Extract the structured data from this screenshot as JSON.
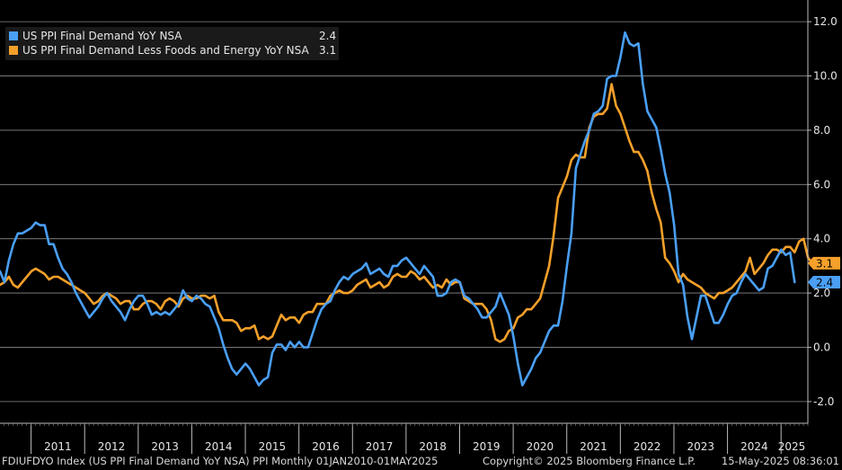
{
  "chart_data": {
    "type": "line",
    "title": "",
    "xlabel": "",
    "ylabel": "",
    "x_start": 2010.42,
    "x_step_months": 1,
    "xlim": [
      2010.42,
      2025.5
    ],
    "ylim": [
      -2.8,
      12.8
    ],
    "yticks": [
      -2.0,
      0.0,
      2.0,
      4.0,
      6.0,
      8.0,
      10.0,
      12.0
    ],
    "ytick_labels": [
      "-2.0",
      "0.0",
      "2.0",
      "4.0",
      "6.0",
      "8.0",
      "10.0",
      "12.0"
    ],
    "xtick_labels": [
      "2011",
      "2012",
      "2013",
      "2014",
      "2015",
      "2016",
      "2017",
      "2018",
      "2019",
      "2020",
      "2021",
      "2022",
      "2023",
      "2024",
      "2025"
    ],
    "legend_position": "top-left",
    "series": [
      {
        "name": "US PPI Final Demand YoY NSA",
        "legend_label": "US PPI Final Demand YoY NSA",
        "last_value": "2.4",
        "color": "#4a9ff5",
        "values": [
          2.8,
          2.4,
          3.2,
          3.8,
          4.2,
          4.2,
          4.3,
          4.4,
          4.6,
          4.5,
          4.5,
          3.8,
          3.8,
          3.3,
          2.9,
          2.7,
          2.4,
          2.0,
          1.7,
          1.4,
          1.1,
          1.3,
          1.5,
          1.8,
          2.0,
          1.7,
          1.5,
          1.3,
          1.0,
          1.4,
          1.7,
          1.9,
          1.9,
          1.6,
          1.2,
          1.3,
          1.2,
          1.3,
          1.2,
          1.4,
          1.6,
          2.1,
          1.8,
          1.7,
          1.9,
          1.8,
          1.6,
          1.5,
          1.1,
          0.7,
          0.1,
          -0.4,
          -0.8,
          -1.0,
          -0.8,
          -0.6,
          -0.8,
          -1.1,
          -1.4,
          -1.2,
          -1.1,
          -0.2,
          0.1,
          0.1,
          -0.1,
          0.2,
          0.0,
          0.2,
          0.0,
          0.0,
          0.5,
          1.0,
          1.4,
          1.6,
          1.7,
          2.1,
          2.4,
          2.6,
          2.5,
          2.7,
          2.8,
          2.9,
          3.1,
          2.7,
          2.8,
          2.9,
          2.7,
          2.6,
          3.0,
          3.0,
          3.2,
          3.3,
          3.1,
          2.9,
          2.7,
          3.0,
          2.8,
          2.6,
          1.9,
          1.9,
          2.0,
          2.4,
          2.5,
          2.4,
          1.9,
          1.8,
          1.6,
          1.4,
          1.1,
          1.1,
          1.3,
          1.5,
          2.0,
          1.6,
          1.2,
          0.4,
          -0.6,
          -1.4,
          -1.1,
          -0.8,
          -0.4,
          -0.2,
          0.2,
          0.6,
          0.8,
          0.8,
          1.7,
          3.0,
          4.2,
          6.6,
          7.1,
          7.6,
          8.0,
          8.6,
          8.7,
          8.9,
          9.9,
          10.0,
          10.0,
          10.7,
          11.6,
          11.2,
          11.1,
          11.2,
          9.7,
          8.7,
          8.4,
          8.1,
          7.3,
          6.4,
          5.7,
          4.5,
          2.7,
          2.3,
          1.1,
          0.3,
          1.1,
          1.9,
          1.9,
          1.4,
          0.9,
          0.9,
          1.2,
          1.6,
          1.9,
          2.0,
          2.4,
          2.7,
          2.5,
          2.3,
          2.1,
          2.2,
          2.9,
          3.0,
          3.3,
          3.6,
          3.4,
          3.5,
          2.4
        ]
      },
      {
        "name": "US PPI Final Demand Less Foods and Energy YoY NSA",
        "legend_label": "US PPI Final Demand Less Foods and Energy YoY NSA",
        "last_value": "3.1",
        "color": "#f5a02a",
        "values": [
          2.3,
          2.4,
          2.6,
          2.3,
          2.2,
          2.4,
          2.6,
          2.8,
          2.9,
          2.8,
          2.7,
          2.5,
          2.6,
          2.6,
          2.5,
          2.4,
          2.3,
          2.2,
          2.1,
          2.0,
          1.8,
          1.6,
          1.7,
          1.9,
          2.0,
          1.9,
          1.8,
          1.6,
          1.7,
          1.7,
          1.4,
          1.4,
          1.6,
          1.7,
          1.7,
          1.6,
          1.4,
          1.7,
          1.8,
          1.7,
          1.5,
          1.8,
          1.9,
          1.8,
          1.8,
          1.9,
          1.9,
          1.8,
          1.9,
          1.3,
          1.0,
          1.0,
          1.0,
          0.9,
          0.6,
          0.7,
          0.7,
          0.8,
          0.3,
          0.4,
          0.3,
          0.4,
          0.8,
          1.2,
          1.0,
          1.1,
          1.1,
          0.9,
          1.2,
          1.3,
          1.3,
          1.6,
          1.6,
          1.6,
          1.9,
          2.0,
          2.1,
          2.0,
          2.0,
          2.1,
          2.3,
          2.4,
          2.5,
          2.2,
          2.3,
          2.4,
          2.2,
          2.3,
          2.6,
          2.7,
          2.6,
          2.6,
          2.8,
          2.7,
          2.5,
          2.6,
          2.4,
          2.2,
          2.3,
          2.2,
          2.5,
          2.3,
          2.4,
          2.4,
          1.8,
          1.7,
          1.6,
          1.6,
          1.6,
          1.4,
          1.0,
          0.3,
          0.2,
          0.3,
          0.6,
          0.7,
          1.1,
          1.2,
          1.4,
          1.4,
          1.6,
          1.8,
          2.4,
          3.0,
          4.1,
          5.5,
          5.9,
          6.3,
          6.9,
          7.1,
          7.0,
          7.0,
          8.1,
          8.5,
          8.6,
          8.6,
          8.8,
          9.7,
          8.9,
          8.6,
          8.1,
          7.6,
          7.2,
          7.2,
          6.9,
          6.5,
          5.7,
          5.1,
          4.6,
          3.3,
          3.1,
          2.8,
          2.4,
          2.7,
          2.5,
          2.4,
          2.3,
          2.2,
          2.0,
          1.9,
          1.8,
          2.0,
          2.0,
          2.1,
          2.2,
          2.4,
          2.6,
          2.8,
          3.3,
          2.7,
          2.9,
          3.1,
          3.4,
          3.6,
          3.6,
          3.5,
          3.7,
          3.7,
          3.5,
          3.9,
          4.0,
          3.3,
          3.1
        ]
      }
    ]
  },
  "footer": {
    "left": "FDIUFDYO Index (US PPI Final Demand YoY NSA) PPI  Monthly 01JAN2010-01MAY2025",
    "center": "Copyright© 2025 Bloomberg Finance L.P.",
    "right": "15-May-2025 08:36:01"
  }
}
